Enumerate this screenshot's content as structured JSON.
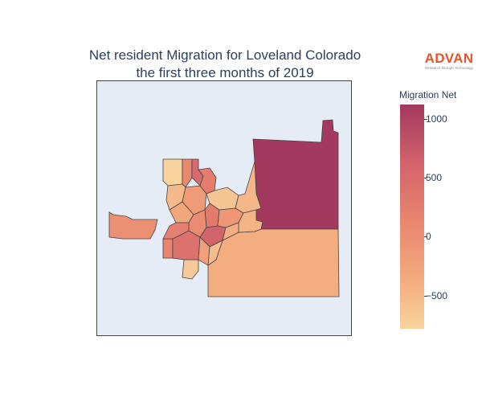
{
  "title_line1": "Net resident Migration for Loveland Colorado",
  "title_line2": "the first three months of 2019",
  "logo": {
    "word": "ADVAN",
    "tagline": "Research through Technology",
    "color": "#e8542a"
  },
  "colorbar": {
    "title": "Migration Net",
    "range": [
      -780,
      1120
    ],
    "ticks": [
      {
        "value": 1000,
        "label": "1000"
      },
      {
        "value": 500,
        "label": "500"
      },
      {
        "value": 0,
        "label": "0"
      },
      {
        "value": -500,
        "label": "−500"
      }
    ],
    "colors": [
      "#f7d39e",
      "#f2a67c",
      "#e9836f",
      "#d1616b",
      "#a3385f"
    ]
  },
  "map": {
    "background": "#e5ecf6",
    "regions": [
      {
        "name": "northeast",
        "value": 1110
      },
      {
        "name": "southeast",
        "value": -380
      },
      {
        "name": "west",
        "value": 0
      },
      {
        "name": "central-sw",
        "value": -690
      },
      {
        "name": "central-s-block",
        "value": -230
      },
      {
        "name": "central-n-a",
        "value": -780
      },
      {
        "name": "central-n-b",
        "value": 120
      },
      {
        "name": "central-n-c",
        "value": 520
      },
      {
        "name": "central-mid-a",
        "value": -150
      },
      {
        "name": "central-mid-b",
        "value": 250
      },
      {
        "name": "central-mid-c",
        "value": -620
      },
      {
        "name": "central-e-a",
        "value": -480
      },
      {
        "name": "central-e-b",
        "value": 300
      },
      {
        "name": "central-w-a",
        "value": -520
      },
      {
        "name": "central-sw-b",
        "value": 150
      },
      {
        "name": "central-sw-c",
        "value": 420
      },
      {
        "name": "central-c1",
        "value": -300
      },
      {
        "name": "central-c2",
        "value": 60
      },
      {
        "name": "central-c3",
        "value": -90
      },
      {
        "name": "central-c4",
        "value": 600
      },
      {
        "name": "central-c5",
        "value": -400
      },
      {
        "name": "central-c6",
        "value": 200
      },
      {
        "name": "central-east-strip",
        "value": -450
      },
      {
        "name": "central-se",
        "value": -560
      }
    ]
  }
}
